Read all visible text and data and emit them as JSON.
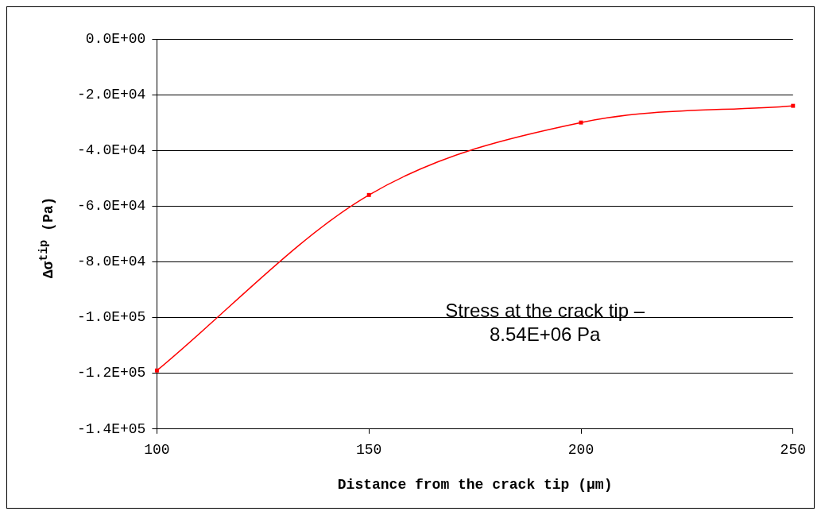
{
  "chart_data": {
    "type": "line",
    "xlabel": "Distance from the crack tip (μm)",
    "ylabel": "Δσ$^{tip}$ (Pa)",
    "x": [
      100,
      150,
      200,
      250
    ],
    "series": [
      {
        "color": "#ff0000",
        "values": [
          -119000,
          -56000,
          -30000,
          -24000
        ]
      }
    ],
    "xlim": [
      100,
      250
    ],
    "xticks": [
      100,
      150,
      200,
      250
    ],
    "ylim": [
      -140000,
      0
    ],
    "yticks": [
      {
        "value": -140000,
        "label": "-1.4E+05"
      },
      {
        "value": -120000,
        "label": "-1.2E+05"
      },
      {
        "value": -100000,
        "label": "-1.0E+05"
      },
      {
        "value": -80000,
        "label": "-8.0E+04"
      },
      {
        "value": -60000,
        "label": "-6.0E+04"
      },
      {
        "value": -40000,
        "label": "-4.0E+04"
      },
      {
        "value": -20000,
        "label": "-2.0E+04"
      },
      {
        "value": 0,
        "label": "0.0E+00"
      }
    ],
    "grid": "y",
    "legend": false,
    "marker": "square",
    "line_style": "solid",
    "annotations": [
      "Stress at the crack tip –\n8.54E+06 Pa"
    ]
  }
}
